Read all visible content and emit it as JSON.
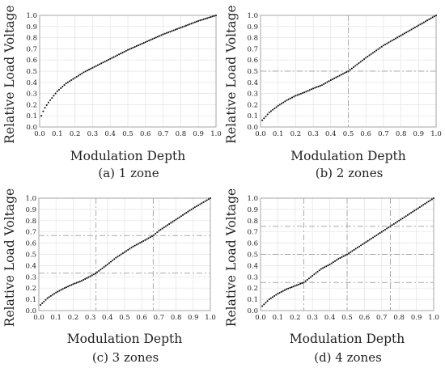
{
  "chart_data": [
    {
      "type": "scatter",
      "caption": "(a) 1 zone",
      "xlabel": "Modulation Depth",
      "ylabel": "Relative Load Voltage",
      "xlim": [
        0,
        1
      ],
      "ylim": [
        0,
        1
      ],
      "xticks": [
        "0.0",
        "0.1",
        "0.2",
        "0.3",
        "0.4",
        "0.5",
        "0.6",
        "0.7",
        "0.8",
        "0.9",
        "1.0"
      ],
      "yticks": [
        "0.0",
        "0.1",
        "0.2",
        "0.3",
        "0.4",
        "0.5",
        "0.6",
        "0.7",
        "0.8",
        "0.9",
        "1.0"
      ],
      "grid": true,
      "zones": 1,
      "zone_boundaries": [],
      "series": [
        {
          "x": [
            0.01,
            0.025,
            0.05,
            0.1,
            0.15,
            0.2,
            0.25,
            0.3,
            0.35,
            0.4,
            0.5,
            0.6,
            0.7,
            0.8,
            0.9,
            1.0
          ],
          "values": [
            0.1,
            0.16,
            0.22,
            0.32,
            0.39,
            0.44,
            0.49,
            0.53,
            0.57,
            0.61,
            0.69,
            0.76,
            0.83,
            0.89,
            0.95,
            1.0
          ]
        }
      ],
      "point_spacing": 0.01,
      "colors": {
        "series": "#111111",
        "grid": "#e3e3e3",
        "zone_lines": "#aaaaaa",
        "axes": "#999999"
      }
    },
    {
      "type": "scatter",
      "caption": "(b) 2 zones",
      "xlabel": "Modulation Depth",
      "ylabel": "Relative Load Voltage",
      "xlim": [
        0,
        1
      ],
      "ylim": [
        0,
        1
      ],
      "xticks": [
        "0.0",
        "0.1",
        "0.2",
        "0.3",
        "0.4",
        "0.5",
        "0.6",
        "0.7",
        "0.8",
        "0.9",
        "1.0"
      ],
      "yticks": [
        "0.0",
        "0.1",
        "0.2",
        "0.3",
        "0.4",
        "0.5",
        "0.6",
        "0.7",
        "0.8",
        "0.9",
        "1.0"
      ],
      "grid": true,
      "zones": 2,
      "zone_boundaries": [
        0.5
      ],
      "series": [
        {
          "x": [
            0.01,
            0.05,
            0.1,
            0.15,
            0.2,
            0.25,
            0.3,
            0.35,
            0.4,
            0.45,
            0.5,
            0.55,
            0.6,
            0.7,
            0.8,
            0.9,
            1.0
          ],
          "values": [
            0.06,
            0.13,
            0.19,
            0.24,
            0.28,
            0.31,
            0.345,
            0.375,
            0.42,
            0.46,
            0.5,
            0.56,
            0.62,
            0.73,
            0.82,
            0.91,
            1.0
          ]
        }
      ],
      "point_spacing": 0.01,
      "colors": {
        "series": "#111111",
        "grid": "#e3e3e3",
        "zone_lines": "#aaaaaa",
        "axes": "#999999"
      }
    },
    {
      "type": "scatter",
      "caption": "(c) 3 zones",
      "xlabel": "Modulation Depth",
      "ylabel": "Relative Load Voltage",
      "xlim": [
        0,
        1
      ],
      "ylim": [
        0,
        1
      ],
      "xticks": [
        "0.0",
        "0.1",
        "0.2",
        "0.3",
        "0.4",
        "0.5",
        "0.6",
        "0.7",
        "0.8",
        "0.9",
        "1.0"
      ],
      "yticks": [
        "0.0",
        "0.1",
        "0.2",
        "0.3",
        "0.4",
        "0.5",
        "0.6",
        "0.7",
        "0.8",
        "0.9",
        "1.0"
      ],
      "grid": true,
      "zones": 3,
      "zone_boundaries": [
        0.333,
        0.667
      ],
      "series": [
        {
          "x": [
            0.01,
            0.05,
            0.1,
            0.15,
            0.2,
            0.25,
            0.3,
            0.333,
            0.4,
            0.45,
            0.5,
            0.55,
            0.6,
            0.667,
            0.7,
            0.8,
            0.9,
            1.0
          ],
          "values": [
            0.05,
            0.11,
            0.16,
            0.2,
            0.235,
            0.265,
            0.305,
            0.333,
            0.41,
            0.47,
            0.52,
            0.57,
            0.61,
            0.667,
            0.71,
            0.81,
            0.91,
            1.0
          ]
        }
      ],
      "point_spacing": 0.01,
      "colors": {
        "series": "#111111",
        "grid": "#e3e3e3",
        "zone_lines": "#aaaaaa",
        "axes": "#999999"
      }
    },
    {
      "type": "scatter",
      "caption": "(d) 4 zones",
      "xlabel": "Modulation Depth",
      "ylabel": "Relative Load Voltage",
      "xlim": [
        0,
        1
      ],
      "ylim": [
        0,
        1
      ],
      "xticks": [
        "0.0",
        "0.1",
        "0.2",
        "0.3",
        "0.4",
        "0.5",
        "0.6",
        "0.7",
        "0.8",
        "0.9",
        "1.0"
      ],
      "yticks": [
        "0.0",
        "0.1",
        "0.2",
        "0.3",
        "0.4",
        "0.5",
        "0.6",
        "0.7",
        "0.8",
        "0.9",
        "1.0"
      ],
      "grid": true,
      "zones": 4,
      "zone_boundaries": [
        0.25,
        0.5,
        0.75
      ],
      "series": [
        {
          "x": [
            0.01,
            0.05,
            0.1,
            0.15,
            0.2,
            0.25,
            0.3,
            0.35,
            0.4,
            0.45,
            0.5,
            0.55,
            0.6,
            0.65,
            0.7,
            0.75,
            0.8,
            0.9,
            1.0
          ],
          "values": [
            0.04,
            0.1,
            0.15,
            0.19,
            0.22,
            0.25,
            0.31,
            0.37,
            0.41,
            0.46,
            0.5,
            0.55,
            0.6,
            0.65,
            0.7,
            0.75,
            0.8,
            0.9,
            1.0
          ]
        }
      ],
      "point_spacing": 0.01,
      "colors": {
        "series": "#111111",
        "grid": "#e3e3e3",
        "zone_lines": "#aaaaaa",
        "axes": "#999999"
      }
    }
  ]
}
